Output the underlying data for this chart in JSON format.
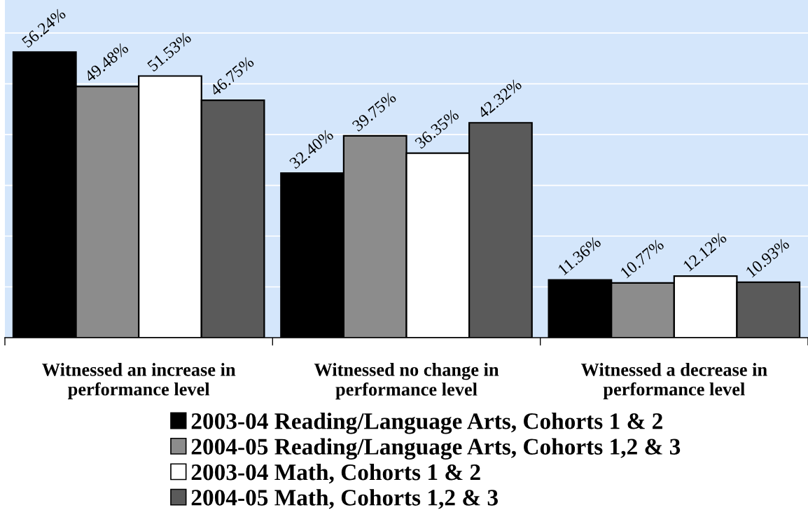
{
  "chart_data": {
    "type": "bar",
    "categories": [
      "Witnessed an increase in\nperformance level",
      "Witnessed no change in\nperformance level",
      "Witnessed a decrease in\nperformance level"
    ],
    "series": [
      {
        "name": "2003-04 Reading/Language Arts, Cohorts 1 & 2",
        "color": "#000000",
        "values": [
          56.24,
          32.4,
          11.36
        ],
        "value_labels": [
          "56.24%",
          "32.40%",
          "11.36%"
        ]
      },
      {
        "name": "2004-05 Reading/Language Arts, Cohorts 1,2 & 3",
        "color": "#8c8c8c",
        "values": [
          49.48,
          39.75,
          10.77
        ],
        "value_labels": [
          "49.48%",
          "39.75%",
          "10.77%"
        ]
      },
      {
        "name": "2003-04 Math, Cohorts 1 & 2",
        "color": "#ffffff",
        "values": [
          51.53,
          36.35,
          12.12
        ],
        "value_labels": [
          "51.53%",
          "36.35%",
          "12.12%"
        ]
      },
      {
        "name": "2004-05 Math, Cohorts 1,2 & 3",
        "color": "#5a5a5a",
        "values": [
          46.75,
          42.32,
          10.93
        ],
        "value_labels": [
          "46.75%",
          "42.32%",
          "10.93%"
        ]
      }
    ],
    "ylim": [
      0,
      66.5
    ],
    "yticks": [
      {
        "value": 10,
        "label": null
      },
      {
        "value": 20,
        "label": null
      },
      {
        "value": 30,
        "label": null
      },
      {
        "value": 40,
        "label": null
      },
      {
        "value": 50,
        "label": null
      },
      {
        "value": 60,
        "label": null
      }
    ],
    "tick_labels": "x",
    "grid": "y",
    "legend": "bottom"
  }
}
